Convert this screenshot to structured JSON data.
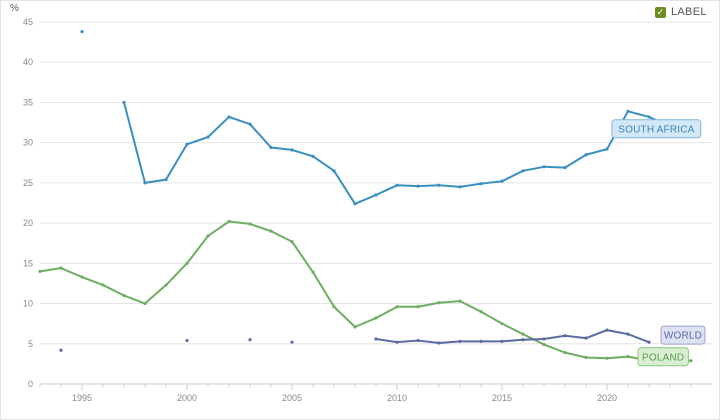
{
  "legend": {
    "label": "LABEL",
    "checked": true,
    "icon": "check-icon"
  },
  "chart_data": {
    "type": "line",
    "ylabel": "%",
    "xlim": [
      1993,
      2025
    ],
    "ylim": [
      0,
      45
    ],
    "yticks": [
      0,
      5,
      10,
      15,
      20,
      25,
      30,
      35,
      40,
      45
    ],
    "xticks": [
      1995,
      2000,
      2005,
      2010,
      2015,
      2020
    ],
    "grid": "horizontal",
    "series": [
      {
        "name": "SOUTH AFRICA",
        "color": "#3a8fc1",
        "label_bg": "#d2e8f7",
        "label_border": "#7fb6dd",
        "label_text": "#3a84b8",
        "points": [
          [
            1995,
            43.8
          ],
          [
            1997,
            35.0
          ],
          [
            1998,
            25.0
          ],
          [
            1999,
            25.4
          ],
          [
            2000,
            29.8
          ],
          [
            2001,
            30.7
          ],
          [
            2002,
            33.2
          ],
          [
            2003,
            32.3
          ],
          [
            2004,
            29.4
          ],
          [
            2005,
            29.1
          ],
          [
            2006,
            28.3
          ],
          [
            2007,
            26.5
          ],
          [
            2008,
            22.4
          ],
          [
            2009,
            23.5
          ],
          [
            2010,
            24.7
          ],
          [
            2011,
            24.6
          ],
          [
            2012,
            24.7
          ],
          [
            2013,
            24.5
          ],
          [
            2014,
            24.9
          ],
          [
            2015,
            25.2
          ],
          [
            2016,
            26.5
          ],
          [
            2017,
            27.0
          ],
          [
            2018,
            26.9
          ],
          [
            2019,
            28.5
          ],
          [
            2020,
            29.2
          ],
          [
            2021,
            33.9
          ],
          [
            2022,
            33.2
          ],
          [
            2023,
            32.0
          ],
          [
            2024,
            32.2
          ]
        ]
      },
      {
        "name": "POLAND",
        "color": "#6fad62",
        "label_bg": "#d9eed3",
        "label_border": "#8cc47f",
        "label_text": "#5d9b50",
        "points": [
          [
            1993,
            14.0
          ],
          [
            1994,
            14.4
          ],
          [
            1995,
            13.3
          ],
          [
            1996,
            12.3
          ],
          [
            1997,
            11.0
          ],
          [
            1998,
            10.0
          ],
          [
            1999,
            12.3
          ],
          [
            2000,
            15.0
          ],
          [
            2001,
            18.4
          ],
          [
            2002,
            20.2
          ],
          [
            2003,
            19.9
          ],
          [
            2004,
            19.0
          ],
          [
            2005,
            17.7
          ],
          [
            2006,
            13.9
          ],
          [
            2007,
            9.6
          ],
          [
            2008,
            7.1
          ],
          [
            2009,
            8.2
          ],
          [
            2010,
            9.6
          ],
          [
            2011,
            9.6
          ],
          [
            2012,
            10.1
          ],
          [
            2013,
            10.3
          ],
          [
            2014,
            9.0
          ],
          [
            2015,
            7.5
          ],
          [
            2016,
            6.2
          ],
          [
            2017,
            4.9
          ],
          [
            2018,
            3.9
          ],
          [
            2019,
            3.3
          ],
          [
            2020,
            3.2
          ],
          [
            2021,
            3.4
          ],
          [
            2022,
            2.9
          ],
          [
            2023,
            2.8
          ],
          [
            2024,
            2.9
          ]
        ]
      },
      {
        "name": "WORLD",
        "color": "#5a6aa5",
        "label_bg": "#dde1f0",
        "label_border": "#9aa3cc",
        "label_text": "#5a6aa5",
        "points": [
          [
            1994,
            4.2
          ],
          [
            2000,
            5.4
          ],
          [
            2003,
            5.5
          ],
          [
            2005,
            5.2
          ],
          [
            2009,
            5.6
          ],
          [
            2010,
            5.2
          ],
          [
            2011,
            5.4
          ],
          [
            2012,
            5.1
          ],
          [
            2013,
            5.3
          ],
          [
            2014,
            5.3
          ],
          [
            2015,
            5.3
          ],
          [
            2016,
            5.5
          ],
          [
            2017,
            5.6
          ],
          [
            2018,
            6.0
          ],
          [
            2019,
            5.7
          ],
          [
            2020,
            6.7
          ],
          [
            2021,
            6.2
          ],
          [
            2022,
            5.2
          ]
        ]
      }
    ]
  }
}
